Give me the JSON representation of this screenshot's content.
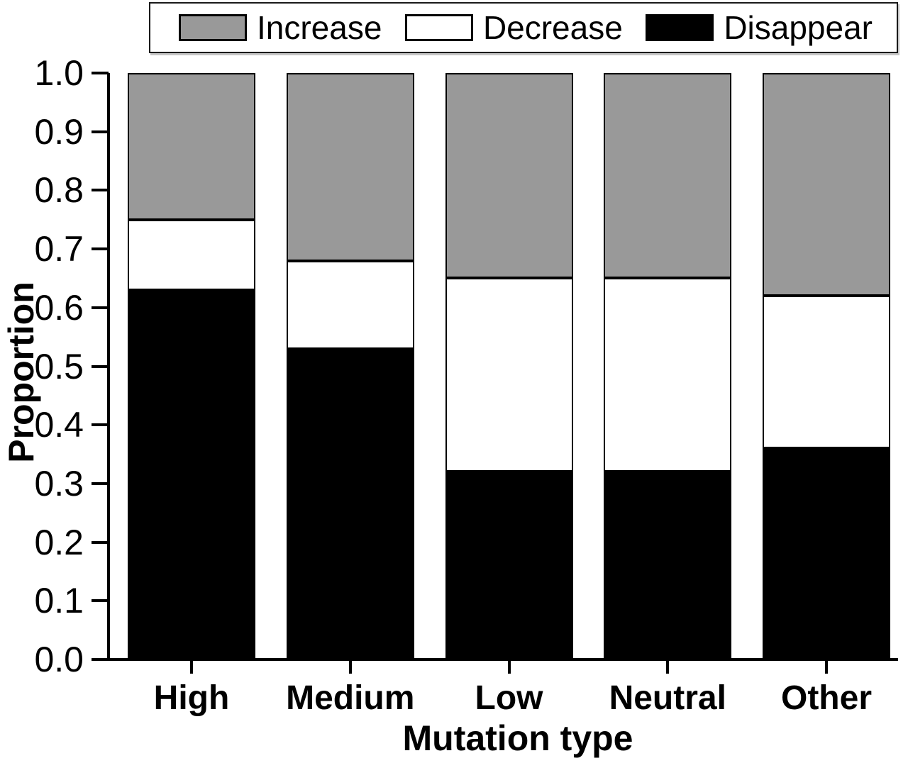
{
  "legend": {
    "items": [
      {
        "id": "increase",
        "label": "Increase",
        "color": "#999999"
      },
      {
        "id": "decrease",
        "label": "Decrease",
        "color": "#ffffff"
      },
      {
        "id": "disappear",
        "label": "Disappear",
        "color": "#000000"
      }
    ]
  },
  "chart_data": {
    "type": "bar",
    "stacked": true,
    "orientation": "vertical",
    "title": "",
    "xlabel": "Mutation type",
    "ylabel": "Proportion",
    "categories": [
      "High",
      "Medium",
      "Low",
      "Neutral",
      "Other"
    ],
    "series": [
      {
        "name": "Disappear",
        "color": "#000000",
        "values": [
          0.63,
          0.53,
          0.32,
          0.32,
          0.36
        ]
      },
      {
        "name": "Decrease",
        "color": "#ffffff",
        "values": [
          0.12,
          0.15,
          0.33,
          0.33,
          0.26
        ]
      },
      {
        "name": "Increase",
        "color": "#999999",
        "values": [
          0.25,
          0.32,
          0.35,
          0.35,
          0.38
        ]
      }
    ],
    "ylim": [
      0.0,
      1.0
    ],
    "ytick_step": 0.1,
    "ytick_labels": [
      "0.0",
      "0.1",
      "0.2",
      "0.3",
      "0.4",
      "0.5",
      "0.6",
      "0.7",
      "0.8",
      "0.9",
      "1.0"
    ],
    "legend_position": "top",
    "legend_order": [
      "Increase",
      "Decrease",
      "Disappear"
    ],
    "grid": false,
    "colors": {
      "axis": "#000000",
      "background": "#ffffff",
      "bar_outline": "#000000"
    }
  }
}
